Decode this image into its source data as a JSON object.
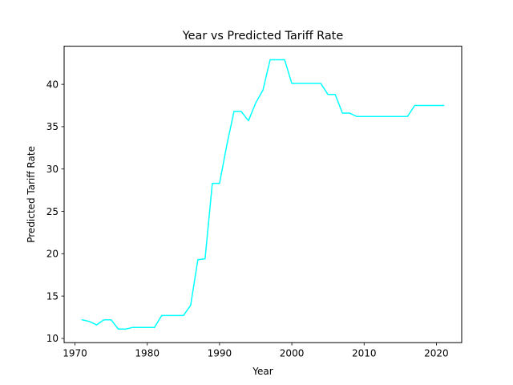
{
  "chart_data": {
    "type": "line",
    "title": "Year vs Predicted Tariff Rate",
    "xlabel": "Year",
    "ylabel": "Predicted Tariff Rate",
    "xlim": [
      1968.5,
      2023.5
    ],
    "ylim": [
      9.5,
      44.5
    ],
    "xticks": [
      1970,
      1980,
      1990,
      2000,
      2010,
      2020
    ],
    "yticks": [
      10,
      15,
      20,
      25,
      30,
      35,
      40
    ],
    "grid": false,
    "series": [
      {
        "color": "#00ffff",
        "x": [
          1971,
          1972,
          1973,
          1974,
          1975,
          1976,
          1977,
          1978,
          1979,
          1980,
          1981,
          1982,
          1983,
          1984,
          1985,
          1986,
          1987,
          1988,
          1989,
          1990,
          1991,
          1992,
          1993,
          1994,
          1995,
          1996,
          1997,
          1998,
          1999,
          2000,
          2001,
          2002,
          2003,
          2004,
          2005,
          2006,
          2007,
          2008,
          2009,
          2010,
          2011,
          2012,
          2013,
          2014,
          2015,
          2016,
          2017,
          2018,
          2019,
          2020,
          2021
        ],
        "y": [
          12.2,
          12.0,
          11.6,
          12.2,
          12.2,
          11.1,
          11.1,
          11.3,
          11.3,
          11.3,
          11.3,
          12.7,
          12.7,
          12.7,
          12.7,
          13.9,
          19.3,
          19.4,
          28.3,
          28.3,
          32.8,
          36.8,
          36.8,
          35.7,
          37.8,
          39.3,
          42.9,
          42.9,
          42.9,
          40.1,
          40.1,
          40.1,
          40.1,
          40.1,
          38.8,
          38.8,
          36.6,
          36.6,
          36.2,
          36.2,
          36.2,
          36.2,
          36.2,
          36.2,
          36.2,
          36.2,
          37.5,
          37.5,
          37.5,
          37.5,
          37.5
        ]
      }
    ]
  }
}
